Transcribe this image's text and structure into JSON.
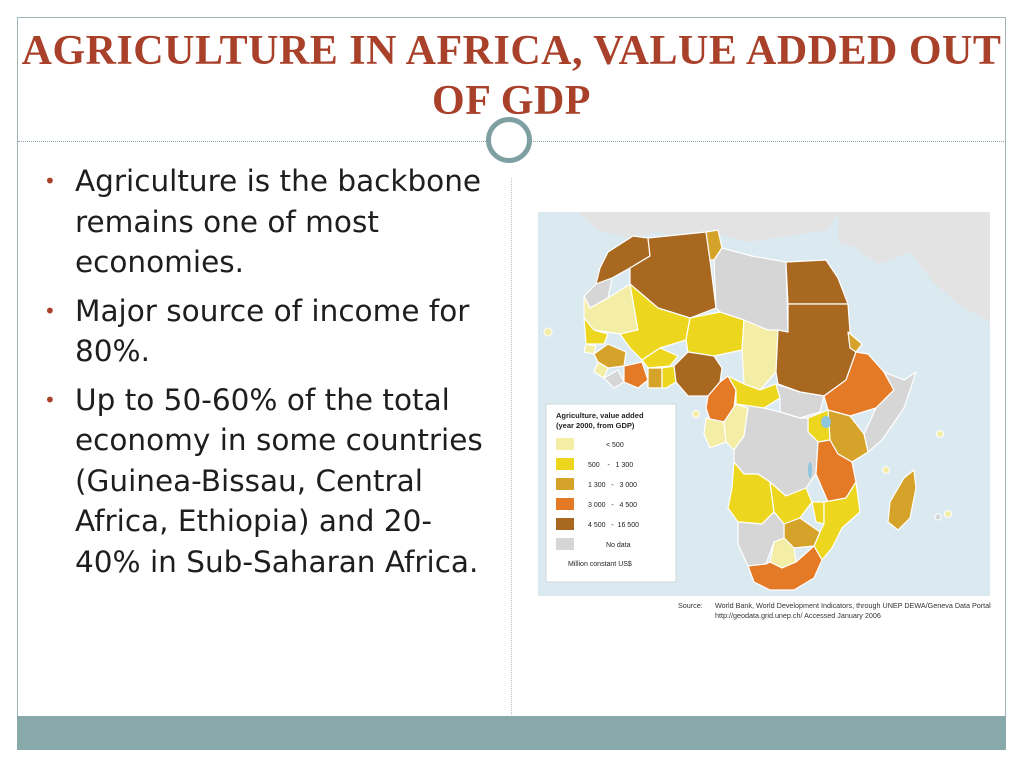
{
  "slide": {
    "title": "AGRICULTURE IN AFRICA, VALUE ADDED OUT OF GDP",
    "bullets": [
      "Agriculture is the backbone remains one of most economies.",
      "Major source of income for 80%.",
      "Up to 50-60% of the total economy in some countries (Guinea-Bissau, Central Africa, Ethiopia) and 20-40% in Sub-Saharan Africa."
    ]
  },
  "map": {
    "legend": {
      "title_line1": "Agriculture, value added",
      "title_line2": "(year 2000, from GDP)",
      "classes": [
        {
          "label": "< 500",
          "color": "#f4eda6"
        },
        {
          "label": "500    -   1 300",
          "color": "#ecd61e"
        },
        {
          "label": "1 300   -   3 000",
          "color": "#d6a32a"
        },
        {
          "label": "3 000   -   4 500",
          "color": "#e57a26"
        },
        {
          "label": "4 500   -  16 500",
          "color": "#a86820"
        },
        {
          "label": "No data",
          "color": "#d6d6d6"
        }
      ],
      "unit": "Million constant US$"
    },
    "source_label": "Source:",
    "source_line1": "World Bank, World Development Indicators, through UNEP DEWA/Geneva Data Portal",
    "source_line2": "http://geodata.grid.unep.ch/  Accessed January 2006",
    "colors": {
      "sea": "#dbe9f1",
      "land_other": "#e3e3e3",
      "border": "#ffffff"
    }
  }
}
